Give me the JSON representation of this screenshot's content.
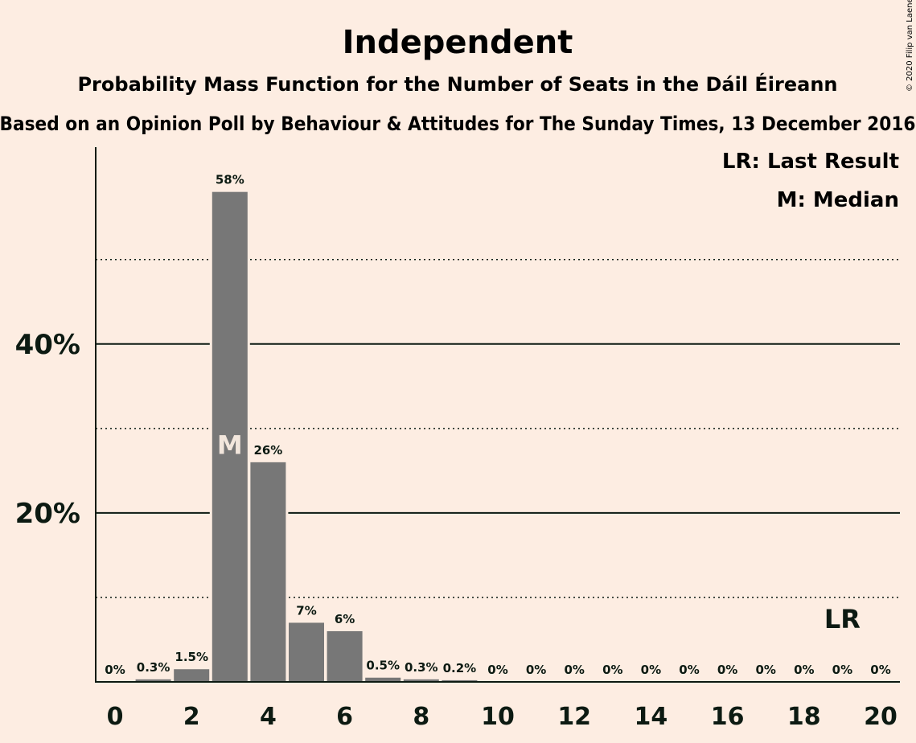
{
  "chart_data": {
    "type": "bar",
    "title": "Independent",
    "subtitle": "Probability Mass Function for the Number of Seats in the Dáil Éireann",
    "subtitle2": "Based on an Opinion Poll by Behaviour & Attitudes for The Sunday Times, 13 December 2016",
    "copyright": "© 2020 Filip van Laenen",
    "x": [
      0,
      1,
      2,
      3,
      4,
      5,
      6,
      7,
      8,
      9,
      10,
      11,
      12,
      13,
      14,
      15,
      16,
      17,
      18,
      19,
      20
    ],
    "values": [
      0,
      0.3,
      1.5,
      58,
      26,
      7,
      6,
      0.5,
      0.3,
      0.2,
      0,
      0,
      0,
      0,
      0,
      0,
      0,
      0,
      0,
      0,
      0
    ],
    "value_labels": [
      "0%",
      "0.3%",
      "1.5%",
      "58%",
      "26%",
      "7%",
      "6%",
      "0.5%",
      "0.3%",
      "0.2%",
      "0%",
      "0%",
      "0%",
      "0%",
      "0%",
      "0%",
      "0%",
      "0%",
      "0%",
      "0%",
      "0%"
    ],
    "x_tick_labels": [
      "0",
      "2",
      "4",
      "6",
      "8",
      "10",
      "12",
      "14",
      "16",
      "18",
      "20"
    ],
    "y_ticks": [
      {
        "value": 20,
        "label": "20%"
      },
      {
        "value": 40,
        "label": "40%"
      }
    ],
    "dotted_gridlines": [
      10,
      30,
      50
    ],
    "ylim": [
      0,
      63.3
    ],
    "median": 3,
    "median_label": "M",
    "last_result": 19,
    "last_result_label": "LR",
    "legend": {
      "position": "top-right",
      "entries": [
        "LR: Last Result",
        "M: Median"
      ]
    },
    "colors": {
      "background": "#FDEDE2",
      "bar": "#777777",
      "text": "#0c1a12"
    }
  }
}
